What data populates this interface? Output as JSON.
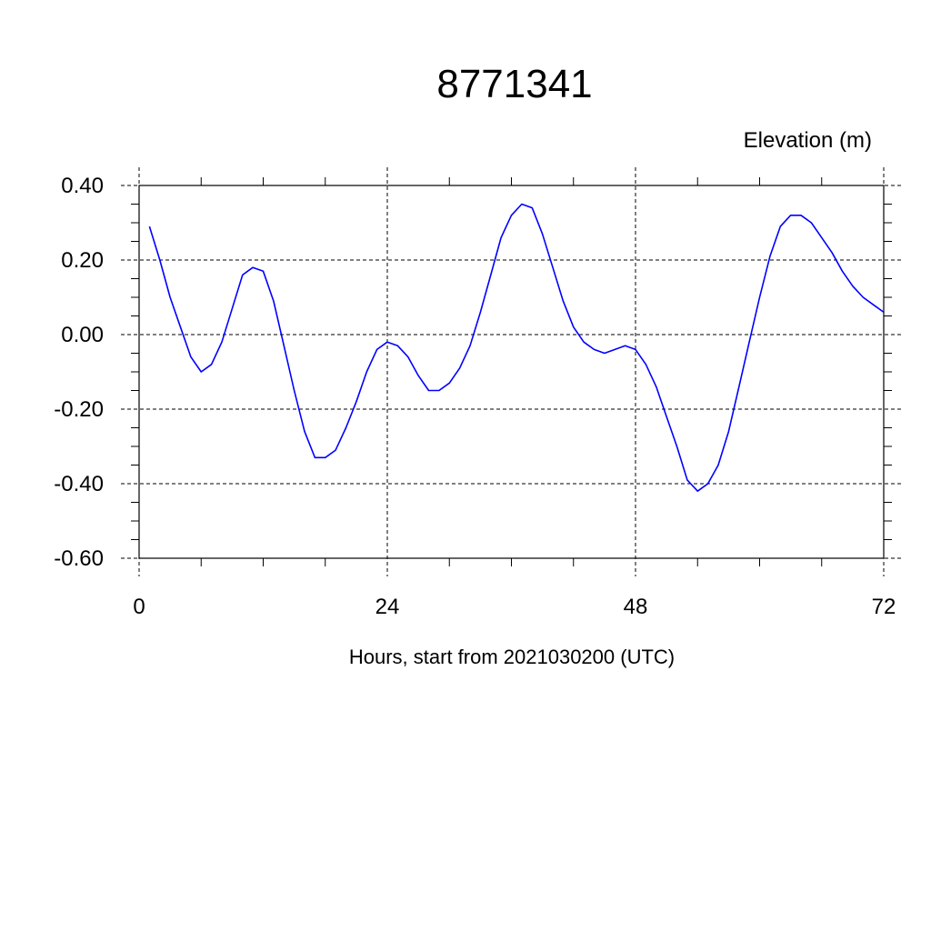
{
  "chart_data": {
    "type": "line",
    "title": "8771341",
    "ylabel": "Elevation (m)",
    "xlabel": "Hours, start from 2021030200 (UTC)",
    "xlim": [
      0,
      72
    ],
    "ylim": [
      -0.6,
      0.4
    ],
    "x_ticks": [
      0,
      24,
      48,
      72
    ],
    "x_tick_labels": [
      "0",
      "24",
      "48",
      "72"
    ],
    "y_ticks": [
      0.4,
      0.2,
      0.0,
      -0.2,
      -0.4,
      -0.6
    ],
    "y_tick_labels": [
      "0.40",
      "0.20",
      "0.00",
      "-0.20",
      "-0.40",
      "-0.60"
    ],
    "grid": true,
    "line_color": "#0000ff",
    "series": [
      {
        "x": [
          1,
          2,
          3,
          4,
          5,
          6,
          7,
          8,
          9,
          10,
          11,
          12,
          13,
          14,
          15,
          16,
          17,
          18,
          19,
          20,
          21,
          22,
          23,
          24,
          25,
          26,
          27,
          28,
          29,
          30,
          31,
          32,
          33,
          34,
          35,
          36,
          37,
          38,
          39,
          40,
          41,
          42,
          43,
          44,
          45,
          46,
          47,
          48,
          49,
          50,
          51,
          52,
          53,
          54,
          55,
          56,
          57,
          58,
          59,
          60,
          61,
          62,
          63,
          64,
          65,
          66,
          67,
          68,
          69,
          70,
          71,
          72
        ],
        "values": [
          0.29,
          0.2,
          0.1,
          0.02,
          -0.06,
          -0.1,
          -0.08,
          -0.02,
          0.07,
          0.16,
          0.18,
          0.17,
          0.09,
          -0.03,
          -0.15,
          -0.26,
          -0.33,
          -0.33,
          -0.31,
          -0.25,
          -0.18,
          -0.1,
          -0.04,
          -0.02,
          -0.03,
          -0.06,
          -0.11,
          -0.15,
          -0.15,
          -0.13,
          -0.09,
          -0.03,
          0.06,
          0.16,
          0.26,
          0.32,
          0.35,
          0.34,
          0.27,
          0.18,
          0.09,
          0.02,
          -0.02,
          -0.04,
          -0.05,
          -0.04,
          -0.03,
          -0.04,
          -0.08,
          -0.14,
          -0.22,
          -0.3,
          -0.39,
          -0.42,
          -0.4,
          -0.35,
          -0.26,
          -0.14,
          -0.02,
          0.1,
          0.21,
          0.29,
          0.32,
          0.32,
          0.3,
          0.26,
          0.22,
          0.17,
          0.13,
          0.1,
          0.08,
          0.06
        ]
      }
    ]
  }
}
